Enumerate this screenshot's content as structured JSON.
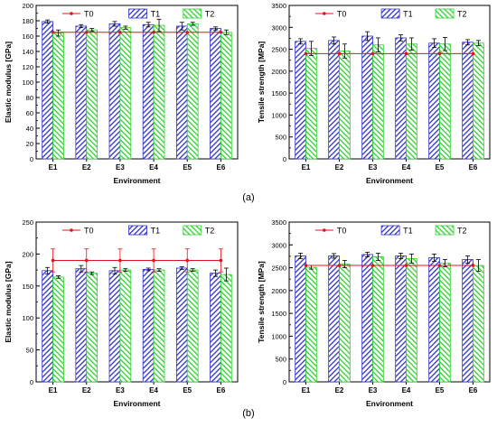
{
  "labels": {
    "panel_a": "(a)",
    "panel_b": "(b)"
  },
  "colors": {
    "t0": "#e0141c",
    "t1": "#3030c8",
    "t2": "#2fd02f"
  },
  "chart_data": [
    {
      "id": "a-left",
      "type": "bar",
      "categories": [
        "E1",
        "E2",
        "E3",
        "E4",
        "E5",
        "E6"
      ],
      "xlabel": "Environment",
      "ylabel": "Elastic modulus [GPa]",
      "ylim": [
        0,
        200
      ],
      "yticks": [
        0,
        20,
        40,
        60,
        80,
        100,
        120,
        140,
        160,
        180,
        200
      ],
      "legend": "top",
      "series": [
        {
          "name": "T0",
          "kind": "line",
          "values": [
            165,
            165,
            165,
            165,
            165,
            165
          ],
          "errors": [
            0,
            0,
            0,
            0,
            0,
            0
          ]
        },
        {
          "name": "T1",
          "kind": "bar",
          "values": [
            179,
            173,
            176,
            175,
            173,
            170
          ],
          "errors": [
            2,
            2,
            3,
            3,
            5,
            2
          ]
        },
        {
          "name": "T2",
          "kind": "bar",
          "values": [
            164,
            168,
            171,
            174,
            176,
            165
          ],
          "errors": [
            4,
            2,
            2,
            8,
            2,
            3
          ]
        }
      ]
    },
    {
      "id": "a-right",
      "type": "bar",
      "categories": [
        "E1",
        "E2",
        "E3",
        "E4",
        "E5",
        "E6"
      ],
      "xlabel": "Environment",
      "ylabel": "Tensile strength [MPa]",
      "ylim": [
        0,
        3500
      ],
      "yticks": [
        0,
        500,
        1000,
        1500,
        2000,
        2500,
        3000,
        3500
      ],
      "legend": "top",
      "series": [
        {
          "name": "T0",
          "kind": "line",
          "values": [
            2400,
            2400,
            2400,
            2400,
            2400,
            2400
          ],
          "errors": [
            0,
            0,
            0,
            0,
            0,
            0
          ]
        },
        {
          "name": "T1",
          "kind": "bar",
          "values": [
            2680,
            2700,
            2800,
            2760,
            2640,
            2660
          ],
          "errors": [
            60,
            80,
            100,
            70,
            100,
            60
          ]
        },
        {
          "name": "T2",
          "kind": "bar",
          "values": [
            2520,
            2460,
            2600,
            2620,
            2620,
            2640
          ],
          "errors": [
            160,
            160,
            160,
            140,
            150,
            60
          ]
        }
      ]
    },
    {
      "id": "b-left",
      "type": "bar",
      "categories": [
        "E1",
        "E2",
        "E3",
        "E4",
        "E5",
        "E6"
      ],
      "xlabel": "Environment",
      "ylabel": "Elastic modulus [GPa]",
      "ylim": [
        0,
        250
      ],
      "yticks": [
        0,
        50,
        100,
        150,
        200,
        250
      ],
      "legend": "top",
      "series": [
        {
          "name": "T0",
          "kind": "line",
          "values": [
            190,
            190,
            190,
            190,
            190,
            190
          ],
          "errors": [
            18,
            18,
            18,
            18,
            18,
            18
          ]
        },
        {
          "name": "T1",
          "kind": "bar",
          "values": [
            174,
            177,
            174,
            176,
            178,
            170
          ],
          "errors": [
            5,
            5,
            5,
            2,
            2,
            5
          ]
        },
        {
          "name": "T2",
          "kind": "bar",
          "values": [
            164,
            170,
            175,
            175,
            175,
            168
          ],
          "errors": [
            2,
            2,
            2,
            2,
            2,
            10
          ]
        }
      ]
    },
    {
      "id": "b-right",
      "type": "bar",
      "categories": [
        "E1",
        "E2",
        "E3",
        "E4",
        "E5",
        "E6"
      ],
      "xlabel": "Environment",
      "ylabel": "Tensile strength [MPa]",
      "ylim": [
        0,
        3500
      ],
      "yticks": [
        0,
        500,
        1000,
        1500,
        2000,
        2500,
        3000,
        3500
      ],
      "legend": "top",
      "series": [
        {
          "name": "T0",
          "kind": "line",
          "values": [
            2550,
            2550,
            2550,
            2550,
            2550,
            2550
          ],
          "errors": [
            0,
            0,
            0,
            0,
            0,
            0
          ]
        },
        {
          "name": "T1",
          "kind": "bar",
          "values": [
            2760,
            2760,
            2790,
            2760,
            2720,
            2680
          ],
          "errors": [
            60,
            50,
            50,
            60,
            80,
            80
          ]
        },
        {
          "name": "T2",
          "kind": "bar",
          "values": [
            2510,
            2580,
            2740,
            2700,
            2600,
            2550
          ],
          "errors": [
            40,
            80,
            80,
            100,
            80,
            130
          ]
        }
      ]
    }
  ]
}
